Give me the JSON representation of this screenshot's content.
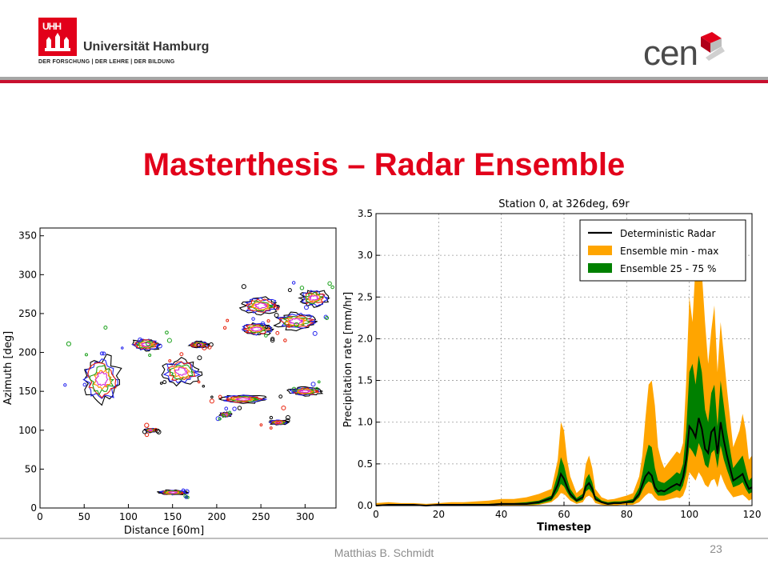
{
  "header": {
    "university_logo_text": "UHH",
    "university_name": "Universität Hamburg",
    "university_motto": "DER FORSCHUNG | DER LEHRE | DER BILDUNG",
    "partner_logo_text": "cen",
    "colors": {
      "brand_red": "#e2001a",
      "rule_gray": "#a6a6a6",
      "logo_gray": "#4a4a4a"
    }
  },
  "slide": {
    "title": "Masterthesis – Radar Ensemble"
  },
  "footer": {
    "author": "Matthias B. Schmidt",
    "page_number": "23"
  },
  "chart_data": [
    {
      "type": "scatter",
      "description": "radar reflectivity contour map",
      "title": "",
      "xlabel": "Distance [60m]",
      "ylabel": "Azimuth [deg]",
      "xlim": [
        0,
        335
      ],
      "ylim": [
        0,
        360
      ],
      "xticks": [
        0,
        50,
        100,
        150,
        200,
        250,
        300
      ],
      "yticks": [
        0,
        50,
        100,
        150,
        200,
        250,
        300,
        350
      ],
      "grid": false,
      "contour_colors": [
        "#000000",
        "#2222ee",
        "#e8200a",
        "#19a019",
        "#ff8c00",
        "#d62ad6"
      ],
      "echoes": [
        {
          "x": 70,
          "y": 165,
          "w": 40,
          "h": 55
        },
        {
          "x": 160,
          "y": 175,
          "w": 40,
          "h": 30
        },
        {
          "x": 120,
          "y": 210,
          "w": 30,
          "h": 15
        },
        {
          "x": 245,
          "y": 230,
          "w": 35,
          "h": 15
        },
        {
          "x": 290,
          "y": 240,
          "w": 45,
          "h": 20
        },
        {
          "x": 250,
          "y": 260,
          "w": 40,
          "h": 20
        },
        {
          "x": 310,
          "y": 270,
          "w": 30,
          "h": 20
        },
        {
          "x": 230,
          "y": 140,
          "w": 50,
          "h": 10
        },
        {
          "x": 300,
          "y": 150,
          "w": 35,
          "h": 10
        },
        {
          "x": 270,
          "y": 110,
          "w": 20,
          "h": 6
        },
        {
          "x": 150,
          "y": 20,
          "w": 30,
          "h": 6
        },
        {
          "x": 125,
          "y": 100,
          "w": 12,
          "h": 5
        },
        {
          "x": 210,
          "y": 120,
          "w": 12,
          "h": 6
        },
        {
          "x": 180,
          "y": 210,
          "w": 20,
          "h": 8
        }
      ]
    },
    {
      "type": "area",
      "title": "Station 0, at 326deg, 69r",
      "xlabel": "Timestep",
      "ylabel": "Precipitation rate [mm/hr]",
      "xlim": [
        0,
        120
      ],
      "ylim": [
        0,
        3.5
      ],
      "xticks": [
        0,
        20,
        40,
        60,
        80,
        100,
        120
      ],
      "yticks": [
        0.0,
        0.5,
        1.0,
        1.5,
        2.0,
        2.5,
        3.0,
        3.5
      ],
      "grid": true,
      "legend_position": "top-right",
      "x": [
        0,
        4,
        8,
        12,
        16,
        20,
        24,
        28,
        32,
        36,
        40,
        44,
        48,
        52,
        56,
        58,
        59,
        60,
        61,
        62,
        64,
        66,
        67,
        68,
        69,
        70,
        72,
        74,
        76,
        78,
        80,
        82,
        84,
        85,
        86,
        87,
        88,
        89,
        90,
        91,
        92,
        94,
        96,
        97,
        98,
        99,
        100,
        101,
        102,
        103,
        104,
        105,
        106,
        107,
        108,
        109,
        110,
        111,
        112,
        114,
        116,
        117,
        118,
        119,
        120
      ],
      "series": [
        {
          "name": "Deterministic Radar",
          "color": "#000000",
          "values": [
            0.0,
            0.01,
            0.01,
            0.01,
            0.0,
            0.01,
            0.01,
            0.01,
            0.01,
            0.01,
            0.02,
            0.02,
            0.02,
            0.04,
            0.09,
            0.25,
            0.38,
            0.32,
            0.22,
            0.14,
            0.06,
            0.1,
            0.23,
            0.27,
            0.2,
            0.08,
            0.04,
            0.02,
            0.03,
            0.03,
            0.04,
            0.05,
            0.14,
            0.25,
            0.35,
            0.4,
            0.36,
            0.22,
            0.17,
            0.18,
            0.17,
            0.22,
            0.26,
            0.24,
            0.34,
            0.55,
            0.95,
            0.9,
            0.82,
            1.05,
            0.92,
            0.68,
            0.63,
            0.88,
            0.93,
            0.62,
            1.0,
            0.78,
            0.6,
            0.3,
            0.35,
            0.38,
            0.28,
            0.2,
            0.22
          ]
        },
        {
          "name": "Ensemble min - max",
          "color": "#ffa500",
          "min": [
            0.0,
            0.0,
            0.0,
            0.0,
            0.0,
            0.0,
            0.0,
            0.0,
            0.0,
            0.0,
            0.0,
            0.0,
            0.0,
            0.01,
            0.04,
            0.1,
            0.15,
            0.14,
            0.1,
            0.06,
            0.02,
            0.04,
            0.1,
            0.12,
            0.09,
            0.03,
            0.01,
            0.0,
            0.0,
            0.01,
            0.01,
            0.01,
            0.04,
            0.08,
            0.12,
            0.15,
            0.14,
            0.09,
            0.06,
            0.06,
            0.06,
            0.08,
            0.1,
            0.09,
            0.12,
            0.22,
            0.4,
            0.35,
            0.3,
            0.4,
            0.34,
            0.25,
            0.22,
            0.3,
            0.32,
            0.22,
            0.38,
            0.28,
            0.2,
            0.1,
            0.12,
            0.13,
            0.1,
            0.06,
            0.08
          ],
          "max": [
            0.03,
            0.04,
            0.03,
            0.03,
            0.02,
            0.03,
            0.04,
            0.04,
            0.05,
            0.06,
            0.08,
            0.08,
            0.1,
            0.14,
            0.2,
            0.55,
            1.0,
            0.9,
            0.55,
            0.35,
            0.15,
            0.22,
            0.5,
            0.6,
            0.45,
            0.2,
            0.1,
            0.07,
            0.08,
            0.1,
            0.12,
            0.15,
            0.35,
            0.6,
            1.05,
            1.45,
            1.5,
            1.2,
            0.7,
            0.55,
            0.45,
            0.55,
            0.65,
            0.62,
            0.75,
            1.5,
            2.5,
            2.2,
            2.9,
            3.05,
            2.8,
            2.2,
            1.7,
            2.1,
            2.4,
            1.6,
            2.2,
            1.8,
            1.4,
            0.7,
            0.9,
            1.1,
            0.9,
            0.55,
            0.6
          ]
        },
        {
          "name": "Ensemble 25 - 75 %",
          "color": "#008000",
          "p25": [
            0.0,
            0.0,
            0.0,
            0.0,
            0.0,
            0.0,
            0.0,
            0.0,
            0.0,
            0.01,
            0.01,
            0.01,
            0.01,
            0.02,
            0.06,
            0.17,
            0.26,
            0.23,
            0.16,
            0.1,
            0.04,
            0.07,
            0.17,
            0.2,
            0.15,
            0.06,
            0.03,
            0.01,
            0.02,
            0.02,
            0.03,
            0.03,
            0.1,
            0.18,
            0.25,
            0.29,
            0.27,
            0.17,
            0.12,
            0.12,
            0.12,
            0.15,
            0.19,
            0.17,
            0.24,
            0.4,
            0.7,
            0.65,
            0.58,
            0.75,
            0.66,
            0.49,
            0.45,
            0.63,
            0.67,
            0.45,
            0.72,
            0.55,
            0.43,
            0.22,
            0.25,
            0.28,
            0.2,
            0.14,
            0.16
          ],
          "p75": [
            0.01,
            0.01,
            0.01,
            0.01,
            0.01,
            0.01,
            0.01,
            0.02,
            0.02,
            0.02,
            0.03,
            0.03,
            0.04,
            0.06,
            0.12,
            0.38,
            0.58,
            0.48,
            0.32,
            0.2,
            0.09,
            0.14,
            0.32,
            0.38,
            0.28,
            0.12,
            0.06,
            0.04,
            0.05,
            0.05,
            0.06,
            0.08,
            0.22,
            0.38,
            0.58,
            0.73,
            0.7,
            0.45,
            0.3,
            0.28,
            0.27,
            0.33,
            0.4,
            0.38,
            0.5,
            0.9,
            1.6,
            1.7,
            1.45,
            1.8,
            1.6,
            1.15,
            1.0,
            1.35,
            1.45,
            0.95,
            1.5,
            1.2,
            0.9,
            0.45,
            0.55,
            0.6,
            0.45,
            0.3,
            0.34
          ]
        }
      ]
    }
  ]
}
